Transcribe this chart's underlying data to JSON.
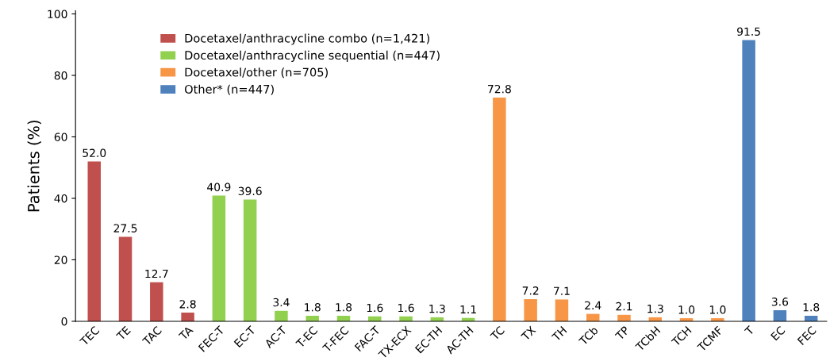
{
  "chart_data": {
    "type": "bar",
    "ylabel": "Patients (%)",
    "categories": [
      "TEC",
      "TE",
      "TAC",
      "TA",
      "FEC-T",
      "EC-T",
      "AC-T",
      "T-EC",
      "T-FEC",
      "FAC-T",
      "TX-ECX",
      "EC-TH",
      "AC-TH",
      "TC",
      "TX",
      "TH",
      "TCb",
      "TP",
      "TCbH",
      "TCH",
      "TCMF",
      "T",
      "EC",
      "FEC"
    ],
    "series": [
      {
        "name": "Docetaxel/anthracycline combo (n=1,421)",
        "color": "#c0504d",
        "values": [
          52.0,
          27.5,
          12.7,
          2.8,
          null,
          null,
          null,
          null,
          null,
          null,
          null,
          null,
          null,
          null,
          null,
          null,
          null,
          null,
          null,
          null,
          null,
          null,
          null,
          null
        ],
        "value_labels": [
          "52.0",
          "27.5",
          "12.7",
          "2.8",
          null,
          null,
          null,
          null,
          null,
          null,
          null,
          null,
          null,
          null,
          null,
          null,
          null,
          null,
          null,
          null,
          null,
          null,
          null,
          null
        ]
      },
      {
        "name": "Docetaxel/anthracycline sequential (n=447)",
        "color": "#92d050",
        "values": [
          null,
          null,
          null,
          null,
          40.9,
          39.6,
          3.4,
          1.8,
          1.8,
          1.6,
          1.6,
          1.3,
          1.1,
          null,
          null,
          null,
          null,
          null,
          null,
          null,
          null,
          null,
          null,
          null
        ],
        "value_labels": [
          null,
          null,
          null,
          null,
          "40.9",
          "39.6",
          "3.4",
          "1.8",
          "1.8",
          "1.6",
          "1.6",
          "1.3",
          "1.1",
          null,
          null,
          null,
          null,
          null,
          null,
          null,
          null,
          null,
          null,
          null
        ]
      },
      {
        "name": "Docetaxel/other (n=705)",
        "color": "#f79646",
        "values": [
          null,
          null,
          null,
          null,
          null,
          null,
          null,
          null,
          null,
          null,
          null,
          null,
          null,
          72.8,
          7.2,
          7.1,
          2.4,
          2.1,
          1.3,
          1.0,
          1.0,
          null,
          null,
          null
        ],
        "value_labels": [
          null,
          null,
          null,
          null,
          null,
          null,
          null,
          null,
          null,
          null,
          null,
          null,
          null,
          "72.8",
          "7.2",
          "7.1",
          "2.4",
          "2.1",
          "1.3",
          "1.0",
          "1.0",
          null,
          null,
          null
        ]
      },
      {
        "name": "Other* (n=447)",
        "color": "#4f81bd",
        "values": [
          null,
          null,
          null,
          null,
          null,
          null,
          null,
          null,
          null,
          null,
          null,
          null,
          null,
          null,
          null,
          null,
          null,
          null,
          null,
          null,
          null,
          91.5,
          3.6,
          1.8
        ],
        "value_labels": [
          null,
          null,
          null,
          null,
          null,
          null,
          null,
          null,
          null,
          null,
          null,
          null,
          null,
          null,
          null,
          null,
          null,
          null,
          null,
          null,
          null,
          "91.5",
          "3.6",
          "1.8"
        ]
      }
    ],
    "ylim": [
      0,
      101
    ],
    "yticks": [
      0,
      20,
      40,
      60,
      80,
      100
    ],
    "grid": false,
    "legend": "top left"
  }
}
